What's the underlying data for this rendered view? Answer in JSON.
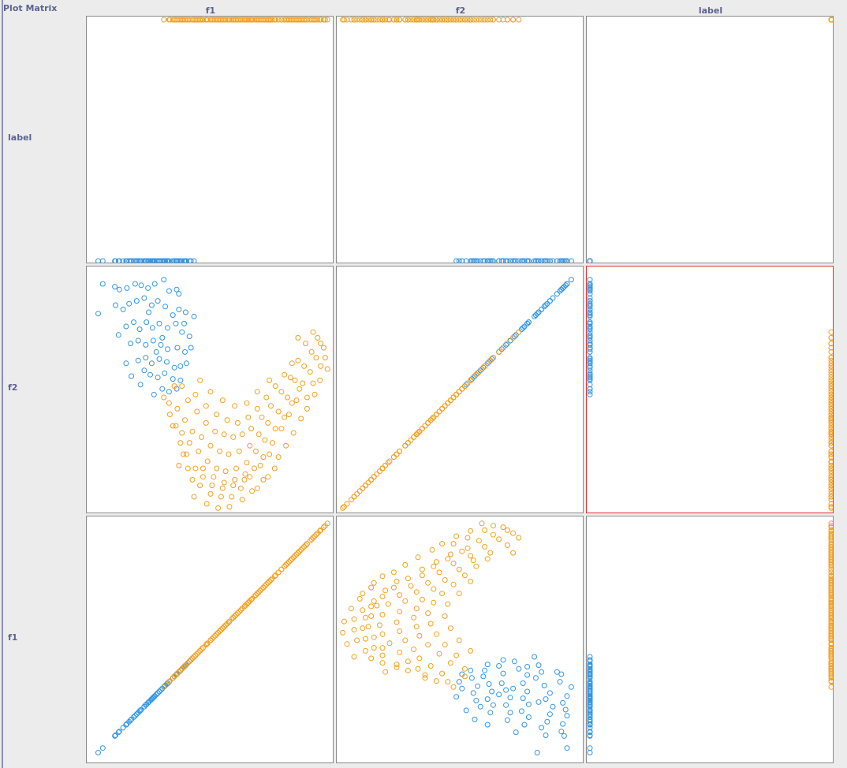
{
  "window": {
    "title": "Plot Matrix"
  },
  "attributes": [
    "f1",
    "f2",
    "label"
  ],
  "column_order": [
    "f1",
    "f2",
    "label"
  ],
  "row_order": [
    "label",
    "f2",
    "f1"
  ],
  "selected_cell": {
    "row": "f2",
    "col": "label"
  },
  "colors": {
    "class_0": "#3296e6",
    "class_1": "#f5a01e",
    "selected_border": "#e03030",
    "axis_text": "#5c6391"
  },
  "chart_data": {
    "type": "scatter",
    "title": "Plot Matrix",
    "layout": "scatterplot-matrix",
    "x_range": [
      -1.1,
      2.1
    ],
    "y_range": [
      -0.6,
      1.1
    ],
    "label_range": [
      0,
      1
    ],
    "classes": [
      {
        "label": 0,
        "color": "#3296e6",
        "shape": "moon-upper"
      },
      {
        "label": 1,
        "color": "#f5a01e",
        "shape": "moon-lower"
      }
    ],
    "points": [
      [
        -0.93,
        1.0,
        0
      ],
      [
        -0.99,
        0.79,
        0
      ],
      [
        -0.77,
        0.98,
        0
      ],
      [
        -0.71,
        0.96,
        0
      ],
      [
        -0.61,
        0.97,
        0
      ],
      [
        -0.5,
        1.0,
        0
      ],
      [
        -0.42,
        0.99,
        0
      ],
      [
        -0.33,
        0.97,
        0
      ],
      [
        -0.24,
        1.0,
        0
      ],
      [
        -0.12,
        1.03,
        0
      ],
      [
        -0.05,
        0.95,
        0
      ],
      [
        0.05,
        0.96,
        0
      ],
      [
        -0.76,
        0.85,
        0
      ],
      [
        -0.66,
        0.82,
        0
      ],
      [
        -0.58,
        0.86,
        0
      ],
      [
        -0.48,
        0.88,
        0
      ],
      [
        -0.38,
        0.9,
        0
      ],
      [
        -0.28,
        0.85,
        0
      ],
      [
        -0.2,
        0.88,
        0
      ],
      [
        -0.1,
        0.84,
        0
      ],
      [
        0.0,
        0.78,
        0
      ],
      [
        0.08,
        0.82,
        0
      ],
      [
        0.17,
        0.8,
        0
      ],
      [
        0.28,
        0.77,
        0
      ],
      [
        -0.62,
        0.7,
        0
      ],
      [
        -0.52,
        0.73,
        0
      ],
      [
        -0.44,
        0.68,
        0
      ],
      [
        -0.35,
        0.73,
        0
      ],
      [
        -0.27,
        0.69,
        0
      ],
      [
        -0.18,
        0.72,
        0
      ],
      [
        -0.07,
        0.69,
        0
      ],
      [
        0.04,
        0.72,
        0
      ],
      [
        0.12,
        0.66,
        0
      ],
      [
        0.22,
        0.63,
        0
      ],
      [
        -0.56,
        0.58,
        0
      ],
      [
        -0.46,
        0.6,
        0
      ],
      [
        -0.36,
        0.57,
        0
      ],
      [
        -0.26,
        0.6,
        0
      ],
      [
        -0.16,
        0.57,
        0
      ],
      [
        -0.07,
        0.54,
        0
      ],
      [
        0.06,
        0.55,
        0
      ],
      [
        0.16,
        0.52,
        0
      ],
      [
        -0.46,
        0.46,
        0
      ],
      [
        -0.36,
        0.48,
        0
      ],
      [
        -0.28,
        0.44,
        0
      ],
      [
        -0.18,
        0.47,
        0
      ],
      [
        -0.08,
        0.45,
        0
      ],
      [
        0.02,
        0.41,
        0
      ],
      [
        0.1,
        0.42,
        0
      ],
      [
        -0.3,
        0.36,
        0
      ],
      [
        -0.2,
        0.34,
        0
      ],
      [
        -0.11,
        0.37,
        0
      ],
      [
        0.0,
        0.33,
        0
      ],
      [
        0.1,
        0.32,
        0
      ],
      [
        -0.14,
        0.26,
        0
      ],
      [
        -0.05,
        0.24,
        0
      ],
      [
        0.05,
        0.26,
        0
      ],
      [
        -0.62,
        0.44,
        0
      ],
      [
        -0.38,
        0.39,
        0
      ],
      [
        -0.25,
        0.22,
        0
      ],
      [
        0.18,
        0.44,
        0
      ],
      [
        -0.43,
        0.29,
        0
      ],
      [
        -0.55,
        0.35,
        0
      ],
      [
        0.24,
        0.55,
        0
      ],
      [
        -0.72,
        0.64,
        0
      ],
      [
        -0.32,
        0.8,
        0
      ],
      [
        -0.14,
        0.62,
        0
      ],
      [
        0.08,
        0.93,
        0
      ],
      [
        -0.22,
        0.52,
        0
      ],
      [
        0.15,
        0.72,
        0
      ],
      [
        -0.12,
        0.2,
        1
      ],
      [
        -0.04,
        0.08,
        1
      ],
      [
        0.04,
        0.0,
        1
      ],
      [
        0.1,
        -0.12,
        1
      ],
      [
        0.18,
        -0.2,
        1
      ],
      [
        0.3,
        -0.3,
        1
      ],
      [
        0.4,
        -0.36,
        1
      ],
      [
        0.52,
        -0.42,
        1
      ],
      [
        0.66,
        -0.44,
        1
      ],
      [
        0.8,
        -0.42,
        1
      ],
      [
        0.95,
        -0.38,
        1
      ],
      [
        1.08,
        -0.3,
        1
      ],
      [
        1.2,
        -0.22,
        1
      ],
      [
        1.32,
        -0.12,
        1
      ],
      [
        1.44,
        -0.02,
        1
      ],
      [
        1.54,
        0.08,
        1
      ],
      [
        1.64,
        0.18,
        1
      ],
      [
        1.72,
        0.3,
        1
      ],
      [
        1.82,
        0.38,
        1
      ],
      [
        1.9,
        0.48,
        1
      ],
      [
        2.0,
        0.55,
        1
      ],
      [
        2.05,
        0.4,
        1
      ],
      [
        0.0,
        0.0,
        1
      ],
      [
        0.12,
        -0.05,
        1
      ],
      [
        0.22,
        -0.12,
        1
      ],
      [
        0.34,
        -0.18,
        1
      ],
      [
        0.46,
        -0.25,
        1
      ],
      [
        0.58,
        -0.3,
        1
      ],
      [
        0.7,
        -0.32,
        1
      ],
      [
        0.84,
        -0.3,
        1
      ],
      [
        0.98,
        -0.26,
        1
      ],
      [
        1.1,
        -0.18,
        1
      ],
      [
        1.22,
        -0.1,
        1
      ],
      [
        1.36,
        -0.02,
        1
      ],
      [
        1.48,
        0.06,
        1
      ],
      [
        1.58,
        0.16,
        1
      ],
      [
        1.68,
        0.26,
        1
      ],
      [
        1.78,
        0.2,
        1
      ],
      [
        1.86,
        0.3,
        1
      ],
      [
        1.96,
        0.42,
        1
      ],
      [
        0.06,
        0.12,
        1
      ],
      [
        0.16,
        0.04,
        1
      ],
      [
        0.26,
        -0.04,
        1
      ],
      [
        0.38,
        -0.08,
        1
      ],
      [
        0.5,
        -0.14,
        1
      ],
      [
        0.62,
        -0.18,
        1
      ],
      [
        0.74,
        -0.2,
        1
      ],
      [
        0.88,
        -0.18,
        1
      ],
      [
        1.02,
        -0.14,
        1
      ],
      [
        1.14,
        -0.06,
        1
      ],
      [
        1.26,
        0.02,
        1
      ],
      [
        1.4,
        0.1,
        1
      ],
      [
        1.52,
        0.2,
        1
      ],
      [
        1.62,
        0.32,
        1
      ],
      [
        1.74,
        0.42,
        1
      ],
      [
        1.84,
        0.52,
        1
      ],
      [
        1.92,
        0.62,
        1
      ],
      [
        0.2,
        0.18,
        1
      ],
      [
        0.32,
        0.1,
        1
      ],
      [
        0.44,
        0.02,
        1
      ],
      [
        0.56,
        -0.04,
        1
      ],
      [
        0.68,
        -0.06,
        1
      ],
      [
        0.8,
        -0.08,
        1
      ],
      [
        0.92,
        -0.06,
        1
      ],
      [
        1.04,
        -0.02,
        1
      ],
      [
        1.18,
        0.06,
        1
      ],
      [
        1.3,
        0.14,
        1
      ],
      [
        1.44,
        0.24,
        1
      ],
      [
        1.56,
        0.34,
        1
      ],
      [
        1.66,
        0.46,
        1
      ],
      [
        0.28,
        -0.5,
        1
      ],
      [
        0.45,
        -0.55,
        1
      ],
      [
        0.6,
        -0.58,
        1
      ],
      [
        0.75,
        -0.57,
        1
      ],
      [
        0.92,
        -0.52,
        1
      ],
      [
        1.05,
        -0.46,
        1
      ],
      [
        1.2,
        -0.38,
        1
      ],
      [
        1.35,
        -0.3,
        1
      ],
      [
        0.36,
        -0.42,
        1
      ],
      [
        0.5,
        -0.48,
        1
      ],
      [
        0.64,
        -0.5,
        1
      ],
      [
        0.78,
        -0.5,
        1
      ],
      [
        0.9,
        -0.44,
        1
      ],
      [
        1.02,
        -0.36,
        1
      ],
      [
        1.16,
        -0.28,
        1
      ],
      [
        1.28,
        -0.2,
        1
      ],
      [
        0.4,
        -0.3,
        1
      ],
      [
        0.54,
        -0.36,
        1
      ],
      [
        0.68,
        -0.4,
        1
      ],
      [
        0.82,
        -0.38,
        1
      ],
      [
        0.96,
        -0.34,
        1
      ],
      [
        1.12,
        -0.44,
        1
      ],
      [
        1.26,
        -0.36,
        1
      ],
      [
        1.4,
        -0.22,
        1
      ],
      [
        1.5,
        -0.14,
        1
      ],
      [
        0.26,
        -0.38,
        1
      ],
      [
        0.2,
        -0.3,
        1
      ],
      [
        0.14,
        -0.2,
        1
      ],
      [
        0.08,
        -0.28,
        1
      ],
      [
        1.6,
        -0.05,
        1
      ],
      [
        1.7,
        0.05,
        1
      ],
      [
        1.78,
        0.12,
        1
      ],
      [
        1.88,
        0.22,
        1
      ],
      [
        1.95,
        0.32,
        1
      ],
      [
        2.02,
        0.48,
        1
      ],
      [
        1.96,
        0.58,
        1
      ],
      [
        1.86,
        0.66,
        1
      ],
      [
        1.76,
        0.58,
        1
      ],
      [
        1.66,
        0.62,
        1
      ],
      [
        0.02,
        0.28,
        1
      ],
      [
        -0.05,
        0.16,
        1
      ],
      [
        0.12,
        0.28,
        1
      ],
      [
        0.3,
        0.22,
        1
      ],
      [
        0.44,
        0.14,
        1
      ],
      [
        0.58,
        0.08,
        1
      ],
      [
        0.72,
        0.04,
        1
      ],
      [
        0.86,
        0.02,
        1
      ],
      [
        1.0,
        0.06,
        1
      ],
      [
        1.12,
        0.12,
        1
      ],
      [
        1.24,
        0.2,
        1
      ],
      [
        1.36,
        0.28,
        1
      ],
      [
        1.48,
        0.36,
        1
      ],
      [
        1.58,
        0.44,
        1
      ],
      [
        0.5,
        0.24,
        1
      ],
      [
        0.66,
        0.18,
        1
      ],
      [
        0.82,
        0.14,
        1
      ],
      [
        0.98,
        0.16,
        1
      ],
      [
        1.12,
        0.24,
        1
      ],
      [
        1.28,
        0.32,
        1
      ],
      [
        0.36,
        0.32,
        1
      ]
    ]
  }
}
